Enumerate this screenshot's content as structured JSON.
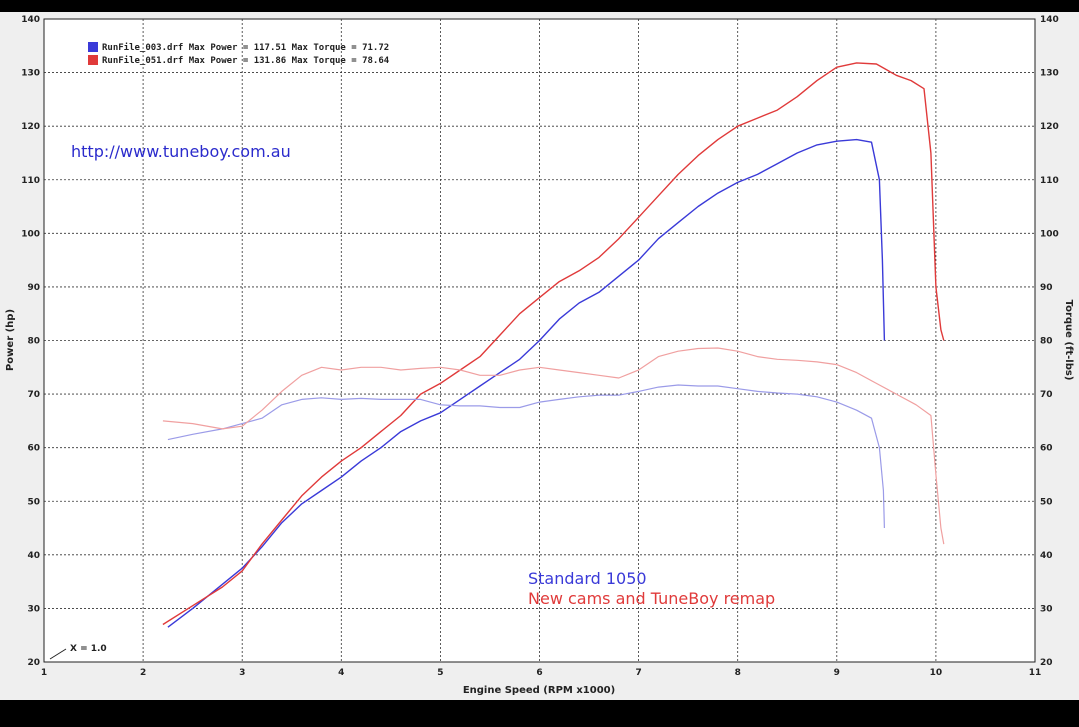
{
  "colors": {
    "standard": "#3a3ad8",
    "remap": "#e03a3a",
    "standard_torque": "#9b9be8",
    "remap_torque": "#f0a0a0",
    "url": "#2b2bcc",
    "grid": "#222222",
    "background": "#ffffff"
  },
  "chart_data": {
    "type": "line",
    "xlabel": "Engine Speed (RPM x1000)",
    "ylabel_left": "Power (hp)",
    "ylabel_right": "Torque (ft-lbs)",
    "xlim": [
      1,
      11
    ],
    "ylim": [
      20,
      140
    ],
    "xticks": [
      "1",
      "2",
      "3",
      "4",
      "5",
      "6",
      "7",
      "8",
      "9",
      "10",
      "11"
    ],
    "yticks": [
      "20",
      "30",
      "40",
      "50",
      "60",
      "70",
      "80",
      "90",
      "100",
      "110",
      "120",
      "130",
      "140"
    ],
    "grid": true,
    "legend": [
      {
        "text": "RunFile_003.drf Max Power = 117.51 Max Torque = 71.72",
        "color": "#3a3ad8"
      },
      {
        "text": "RunFile_051.drf Max Power = 131.86 Max Torque = 78.64",
        "color": "#e03a3a"
      }
    ],
    "url_text": "http://www.tuneboy.com.au",
    "annotation_standard": "Standard 1050",
    "annotation_remap": "New cams and TuneBoy remap",
    "scale_note": "X = 1.0",
    "series": [
      {
        "key": "standard_power",
        "axis": "power",
        "color": "#3a3ad8",
        "x": [
          2.25,
          2.5,
          2.8,
          3.0,
          3.2,
          3.4,
          3.6,
          3.8,
          4.0,
          4.2,
          4.4,
          4.6,
          4.8,
          5.0,
          5.2,
          5.4,
          5.6,
          5.8,
          6.0,
          6.2,
          6.4,
          6.6,
          6.8,
          7.0,
          7.2,
          7.4,
          7.6,
          7.8,
          8.0,
          8.2,
          8.4,
          8.6,
          8.8,
          9.0,
          9.2,
          9.35,
          9.43,
          9.46,
          9.48
        ],
        "y": [
          26.5,
          30,
          34.5,
          37.5,
          41.5,
          46,
          49.5,
          52,
          54.5,
          57.5,
          60,
          63,
          65,
          66.5,
          69,
          71.5,
          74,
          76.5,
          80,
          84,
          87,
          89,
          92,
          95,
          99,
          102,
          105,
          107.5,
          109.5,
          111,
          113,
          115,
          116.5,
          117.2,
          117.5,
          117,
          110,
          95,
          80
        ]
      },
      {
        "key": "remap_power",
        "axis": "power",
        "color": "#e03a3a",
        "x": [
          2.2,
          2.5,
          2.8,
          3.0,
          3.2,
          3.4,
          3.6,
          3.8,
          4.0,
          4.2,
          4.4,
          4.6,
          4.8,
          5.0,
          5.2,
          5.4,
          5.6,
          5.8,
          6.0,
          6.2,
          6.4,
          6.6,
          6.8,
          7.0,
          7.2,
          7.4,
          7.6,
          7.8,
          8.0,
          8.2,
          8.4,
          8.6,
          8.8,
          9.0,
          9.2,
          9.4,
          9.6,
          9.75,
          9.88,
          9.95,
          10.0,
          10.05,
          10.08
        ],
        "y": [
          27,
          30.5,
          34,
          37,
          42,
          46.5,
          51,
          54.5,
          57.5,
          60,
          63,
          66,
          70,
          72,
          74.5,
          77,
          81,
          85,
          88,
          91,
          93,
          95.5,
          99,
          103,
          107,
          111,
          114.5,
          117.5,
          120,
          121.5,
          123,
          125.5,
          128.5,
          131,
          131.8,
          131.6,
          129.5,
          128.5,
          127,
          115,
          90,
          82,
          80
        ]
      },
      {
        "key": "standard_torque",
        "axis": "torque",
        "color": "#9b9be8",
        "x": [
          2.25,
          2.5,
          2.8,
          3.0,
          3.2,
          3.4,
          3.6,
          3.8,
          4.0,
          4.2,
          4.4,
          4.6,
          4.8,
          5.0,
          5.2,
          5.4,
          5.6,
          5.8,
          6.0,
          6.2,
          6.4,
          6.6,
          6.8,
          7.0,
          7.2,
          7.4,
          7.6,
          7.8,
          8.0,
          8.2,
          8.4,
          8.6,
          8.8,
          9.0,
          9.2,
          9.35,
          9.43,
          9.47,
          9.48
        ],
        "y": [
          61.5,
          62.5,
          63.5,
          64.5,
          65.5,
          68,
          69,
          69.3,
          69,
          69.2,
          69,
          69,
          69,
          68,
          67.8,
          67.8,
          67.5,
          67.5,
          68.5,
          69,
          69.5,
          69.8,
          69.8,
          70.5,
          71.3,
          71.7,
          71.5,
          71.5,
          71,
          70.5,
          70.2,
          70,
          69.5,
          68.5,
          67,
          65.5,
          60,
          52,
          45
        ]
      },
      {
        "key": "remap_torque",
        "axis": "torque",
        "color": "#f0a0a0",
        "x": [
          2.2,
          2.5,
          2.8,
          3.0,
          3.2,
          3.4,
          3.6,
          3.8,
          4.0,
          4.2,
          4.4,
          4.6,
          4.8,
          5.0,
          5.2,
          5.4,
          5.6,
          5.8,
          6.0,
          6.2,
          6.4,
          6.6,
          6.8,
          7.0,
          7.2,
          7.4,
          7.6,
          7.8,
          8.0,
          8.2,
          8.4,
          8.6,
          8.8,
          9.0,
          9.2,
          9.4,
          9.6,
          9.8,
          9.95,
          10.0,
          10.05,
          10.08
        ],
        "y": [
          65,
          64.5,
          63.5,
          64,
          67,
          70.5,
          73.5,
          75,
          74.5,
          75,
          75,
          74.5,
          74.8,
          75,
          74.5,
          73.5,
          73.5,
          74.5,
          75,
          74.5,
          74,
          73.5,
          73,
          74.5,
          77,
          78,
          78.5,
          78.6,
          78,
          77,
          76.5,
          76.3,
          76,
          75.5,
          74,
          72,
          70,
          68,
          66,
          55,
          45,
          42
        ]
      }
    ]
  }
}
